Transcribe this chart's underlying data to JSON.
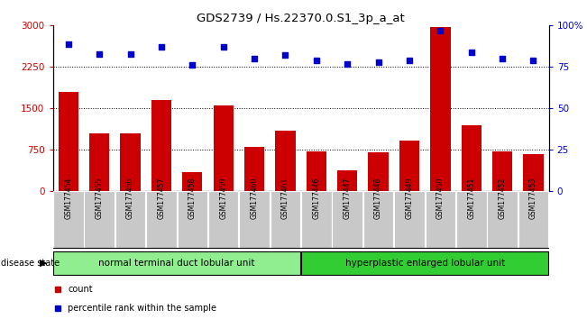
{
  "title": "GDS2739 / Hs.22370.0.S1_3p_a_at",
  "samples": [
    "GSM177454",
    "GSM177455",
    "GSM177456",
    "GSM177457",
    "GSM177458",
    "GSM177459",
    "GSM177460",
    "GSM177461",
    "GSM177446",
    "GSM177447",
    "GSM177448",
    "GSM177449",
    "GSM177450",
    "GSM177451",
    "GSM177452",
    "GSM177453"
  ],
  "counts": [
    1800,
    1050,
    1050,
    1650,
    350,
    1560,
    800,
    1100,
    720,
    380,
    700,
    920,
    2980,
    1200,
    720,
    680
  ],
  "percentiles": [
    89,
    83,
    83,
    87,
    76,
    87,
    80,
    82,
    79,
    77,
    78,
    79,
    97,
    84,
    80,
    79
  ],
  "bar_color": "#cc0000",
  "dot_color": "#0000cc",
  "ylim_left": [
    0,
    3000
  ],
  "ylim_right": [
    0,
    100
  ],
  "yticks_left": [
    0,
    750,
    1500,
    2250,
    3000
  ],
  "yticks_right": [
    0,
    25,
    50,
    75,
    100
  ],
  "ytick_labels_left": [
    "0",
    "750",
    "1500",
    "2250",
    "3000"
  ],
  "ytick_labels_right": [
    "0",
    "25",
    "50",
    "75",
    "100%"
  ],
  "group1_label": "normal terminal duct lobular unit",
  "group2_label": "hyperplastic enlarged lobular unit",
  "group1_count": 8,
  "group2_count": 8,
  "group1_color": "#90ee90",
  "group2_color": "#32cd32",
  "disease_state_label": "disease state",
  "legend_count_label": "count",
  "legend_percentile_label": "percentile rank within the sample",
  "tick_bg_color": "#c8c8c8"
}
